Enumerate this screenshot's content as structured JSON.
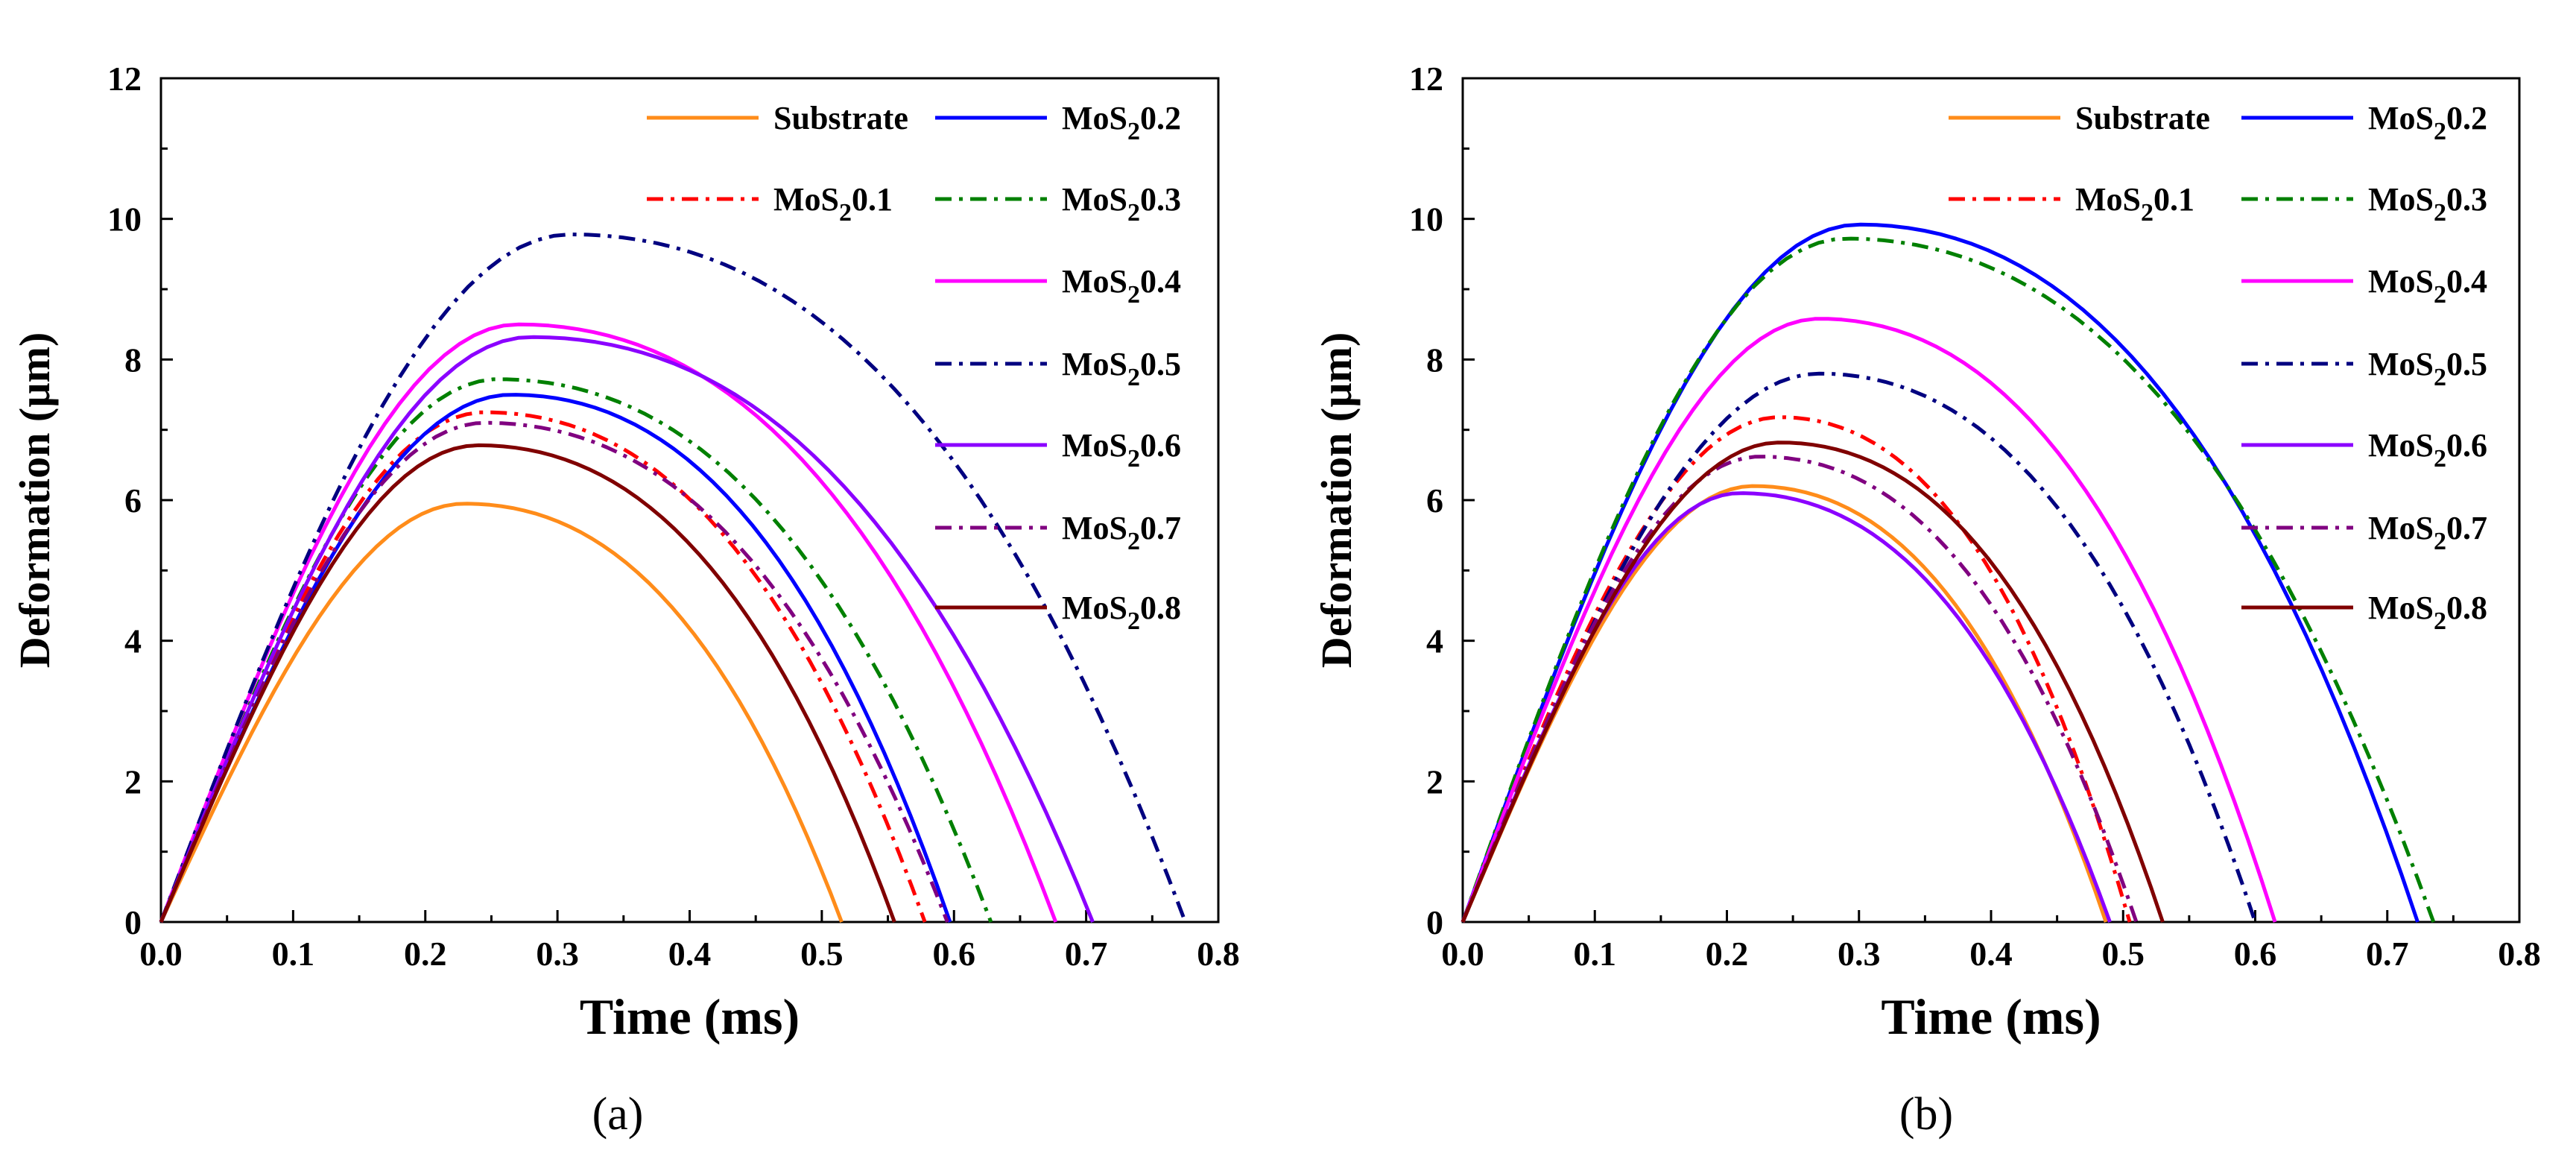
{
  "chart_data": [
    {
      "type": "line",
      "panel_label": "(a)",
      "xlabel": "Time (ms)",
      "ylabel": "Deformation (µm)",
      "xlim": [
        0.0,
        0.8
      ],
      "ylim": [
        0,
        12
      ],
      "xticks": [
        "0.0",
        "0.1",
        "0.2",
        "0.3",
        "0.4",
        "0.5",
        "0.6",
        "0.7",
        "0.8"
      ],
      "yticks": [
        "0",
        "2",
        "4",
        "6",
        "8",
        "10",
        "12"
      ],
      "series": [
        {
          "name": "Substrate",
          "sub": "",
          "suffix": "",
          "color": "#ff8c1a",
          "dash": "solid",
          "peak_t": 0.23,
          "peak_d": 5.95,
          "end_t": 0.515
        },
        {
          "name": "MoS",
          "sub": "2",
          "suffix": "0.1",
          "color": "#ff0000",
          "dash": "dashdot",
          "peak_t": 0.245,
          "peak_d": 7.25,
          "end_t": 0.578
        },
        {
          "name": "MoS",
          "sub": "2",
          "suffix": "0.2",
          "color": "#0000ff",
          "dash": "solid",
          "peak_t": 0.265,
          "peak_d": 7.5,
          "end_t": 0.597
        },
        {
          "name": "MoS",
          "sub": "2",
          "suffix": "0.3",
          "color": "#008000",
          "dash": "dashdot",
          "peak_t": 0.255,
          "peak_d": 7.72,
          "end_t": 0.628
        },
        {
          "name": "MoS",
          "sub": "2",
          "suffix": "0.4",
          "color": "#ff00ff",
          "dash": "solid",
          "peak_t": 0.27,
          "peak_d": 8.5,
          "end_t": 0.677
        },
        {
          "name": "MoS",
          "sub": "2",
          "suffix": "0.5",
          "color": "#000080",
          "dash": "dashdot",
          "peak_t": 0.31,
          "peak_d": 9.78,
          "end_t": 0.775
        },
        {
          "name": "MoS",
          "sub": "2",
          "suffix": "0.6",
          "color": "#8b00ff",
          "dash": "solid",
          "peak_t": 0.28,
          "peak_d": 8.32,
          "end_t": 0.705
        },
        {
          "name": "MoS",
          "sub": "2",
          "suffix": "0.7",
          "color": "#800080",
          "dash": "dashdot",
          "peak_t": 0.245,
          "peak_d": 7.1,
          "end_t": 0.595
        },
        {
          "name": "MoS",
          "sub": "2",
          "suffix": "0.8",
          "color": "#800000",
          "dash": "solid",
          "peak_t": 0.24,
          "peak_d": 6.78,
          "end_t": 0.555
        }
      ]
    },
    {
      "type": "line",
      "panel_label": "(b)",
      "xlabel": "Time (ms)",
      "ylabel": "Deformation (µm)",
      "xlim": [
        0.0,
        0.8
      ],
      "ylim": [
        0,
        12
      ],
      "xticks": [
        "0.0",
        "0.1",
        "0.2",
        "0.3",
        "0.4",
        "0.5",
        "0.6",
        "0.7",
        "0.8"
      ],
      "yticks": [
        "0",
        "2",
        "4",
        "6",
        "8",
        "10",
        "12"
      ],
      "series": [
        {
          "name": "Substrate",
          "sub": "",
          "suffix": "",
          "color": "#ff8c1a",
          "dash": "solid",
          "peak_t": 0.22,
          "peak_d": 6.2,
          "end_t": 0.487
        },
        {
          "name": "MoS",
          "sub": "2",
          "suffix": "0.1",
          "color": "#ff0000",
          "dash": "dashdot",
          "peak_t": 0.24,
          "peak_d": 7.18,
          "end_t": 0.505
        },
        {
          "name": "MoS",
          "sub": "2",
          "suffix": "0.2",
          "color": "#0000ff",
          "dash": "solid",
          "peak_t": 0.3,
          "peak_d": 9.92,
          "end_t": 0.723
        },
        {
          "name": "MoS",
          "sub": "2",
          "suffix": "0.3",
          "color": "#008000",
          "dash": "dashdot",
          "peak_t": 0.29,
          "peak_d": 9.72,
          "end_t": 0.735
        },
        {
          "name": "MoS",
          "sub": "2",
          "suffix": "0.4",
          "color": "#ff00ff",
          "dash": "solid",
          "peak_t": 0.27,
          "peak_d": 8.58,
          "end_t": 0.615
        },
        {
          "name": "MoS",
          "sub": "2",
          "suffix": "0.5",
          "color": "#000080",
          "dash": "dashdot",
          "peak_t": 0.27,
          "peak_d": 7.8,
          "end_t": 0.6
        },
        {
          "name": "MoS",
          "sub": "2",
          "suffix": "0.6",
          "color": "#8b00ff",
          "dash": "solid",
          "peak_t": 0.21,
          "peak_d": 6.1,
          "end_t": 0.49
        },
        {
          "name": "MoS",
          "sub": "2",
          "suffix": "0.7",
          "color": "#800080",
          "dash": "dashdot",
          "peak_t": 0.225,
          "peak_d": 6.62,
          "end_t": 0.51
        },
        {
          "name": "MoS",
          "sub": "2",
          "suffix": "0.8",
          "color": "#800000",
          "dash": "solid",
          "peak_t": 0.24,
          "peak_d": 6.82,
          "end_t": 0.53
        }
      ]
    }
  ]
}
